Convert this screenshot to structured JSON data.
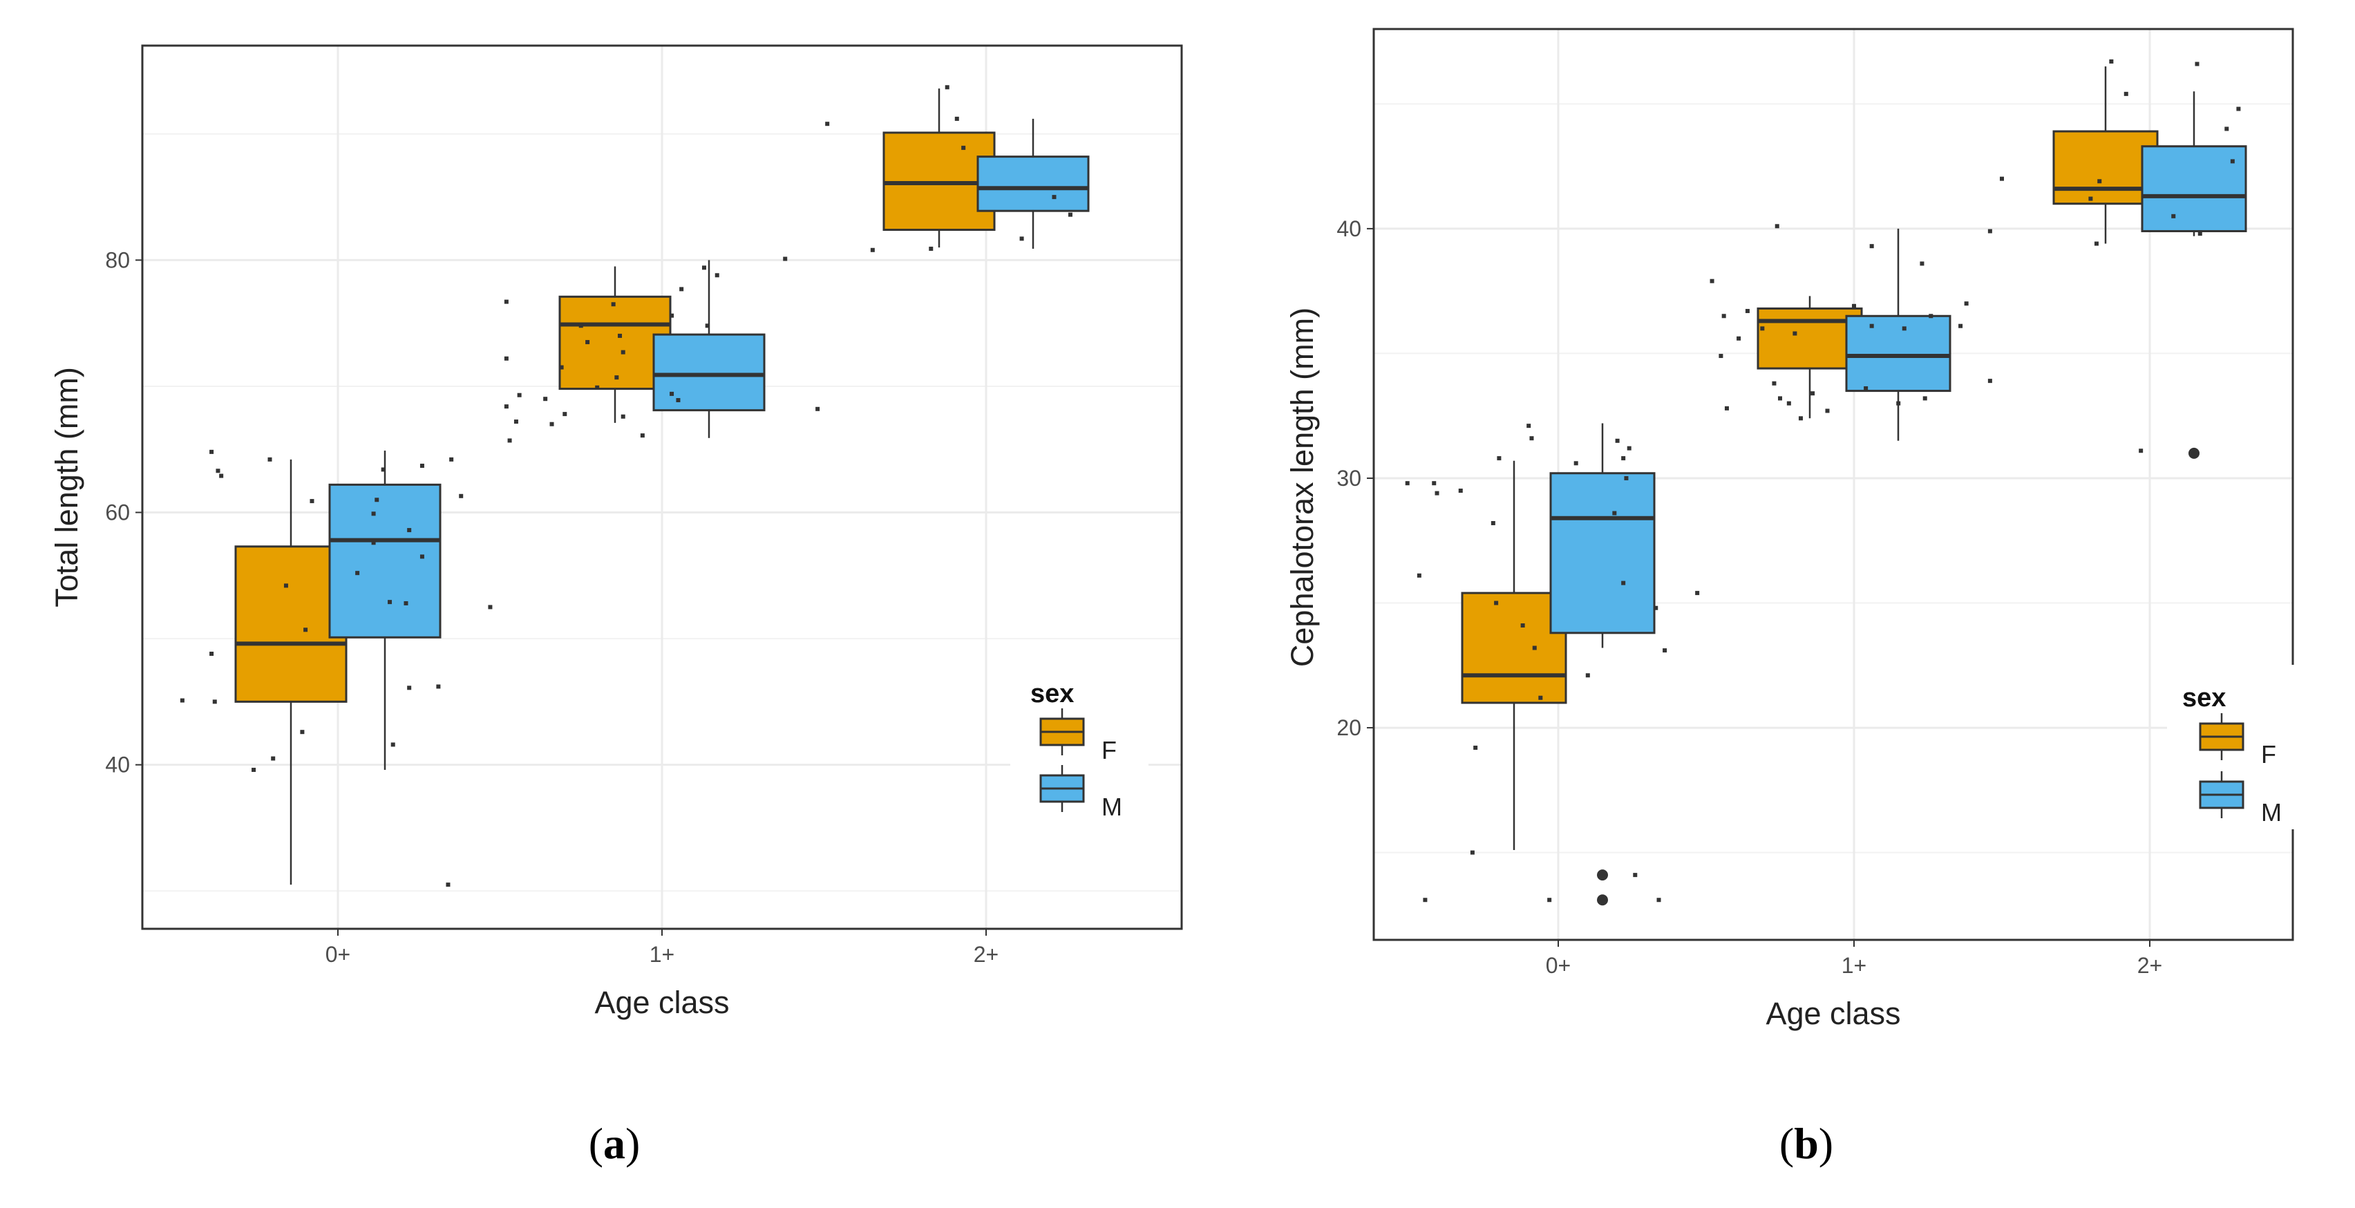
{
  "figure": {
    "panels": [
      "a",
      "b"
    ]
  },
  "colors": {
    "F": "#E69F00",
    "M": "#56B4E9",
    "grid": "#ebebeb",
    "outline": "#333333",
    "points": "#333333"
  },
  "chart_data": [
    {
      "type": "box",
      "panel": "a",
      "caption_open": "(",
      "caption_letter": "a",
      "caption_close": ")",
      "title": "",
      "xlabel": "Age class",
      "ylabel": "Total length (mm)",
      "categories": [
        "0+",
        "1+",
        "2+"
      ],
      "ylim": [
        27,
        97
      ],
      "yticks": [
        40,
        60,
        80
      ],
      "grid": true,
      "legend": {
        "title": "sex",
        "position": "right",
        "entries": [
          "F",
          "M"
        ]
      },
      "series": [
        {
          "name": "F",
          "boxes": [
            {
              "category": "0+",
              "min": 30.5,
              "q1": 45.0,
              "median": 49.6,
              "q3": 57.3,
              "max": 64.2,
              "outliers": []
            },
            {
              "category": "1+",
              "min": 67.1,
              "q1": 69.8,
              "median": 74.9,
              "q3": 77.1,
              "max": 79.5,
              "outliers": []
            },
            {
              "category": "2+",
              "min": 81.0,
              "q1": 82.4,
              "median": 86.1,
              "q3": 90.1,
              "max": 93.6,
              "outliers": []
            }
          ]
        },
        {
          "name": "M",
          "boxes": [
            {
              "category": "0+",
              "min": 39.6,
              "q1": 50.1,
              "median": 57.8,
              "q3": 62.2,
              "max": 64.9,
              "outliers": []
            },
            {
              "category": "1+",
              "min": 65.9,
              "q1": 68.1,
              "median": 70.9,
              "q3": 74.1,
              "max": 80.0,
              "outliers": []
            },
            {
              "category": "2+",
              "min": 80.9,
              "q1": 83.9,
              "median": 85.7,
              "q3": 88.2,
              "max": 91.2,
              "outliers": []
            }
          ]
        }
      ],
      "jitter": [
        {
          "x": -0.48,
          "y": 45.1
        },
        {
          "x": -0.39,
          "y": 64.8
        },
        {
          "x": -0.37,
          "y": 63.3
        },
        {
          "x": -0.36,
          "y": 62.9
        },
        {
          "x": -0.39,
          "y": 48.8
        },
        {
          "x": -0.38,
          "y": 45.0
        },
        {
          "x": -0.26,
          "y": 39.6
        },
        {
          "x": -0.2,
          "y": 40.5
        },
        {
          "x": -0.16,
          "y": 54.2
        },
        {
          "x": -0.21,
          "y": 64.2
        },
        {
          "x": -0.1,
          "y": 50.7
        },
        {
          "x": -0.11,
          "y": 42.6
        },
        {
          "x": -0.08,
          "y": 60.9
        },
        {
          "x": 0.06,
          "y": 55.2
        },
        {
          "x": 0.11,
          "y": 59.9
        },
        {
          "x": 0.12,
          "y": 61.0
        },
        {
          "x": 0.14,
          "y": 63.4
        },
        {
          "x": 0.11,
          "y": 57.6
        },
        {
          "x": 0.16,
          "y": 52.9
        },
        {
          "x": 0.17,
          "y": 41.6
        },
        {
          "x": 0.21,
          "y": 52.8
        },
        {
          "x": 0.22,
          "y": 58.6
        },
        {
          "x": 0.26,
          "y": 56.5
        },
        {
          "x": 0.26,
          "y": 63.7
        },
        {
          "x": 0.22,
          "y": 46.1
        },
        {
          "x": 0.31,
          "y": 46.2
        },
        {
          "x": 0.35,
          "y": 64.2
        },
        {
          "x": 0.38,
          "y": 61.3
        },
        {
          "x": 0.34,
          "y": 30.5
        },
        {
          "x": 0.47,
          "y": 52.5
        },
        {
          "x": 0.52,
          "y": 76.7
        },
        {
          "x": 0.52,
          "y": 72.2
        },
        {
          "x": 0.52,
          "y": 68.4
        },
        {
          "x": 0.53,
          "y": 65.7
        },
        {
          "x": 0.55,
          "y": 67.2
        },
        {
          "x": 0.56,
          "y": 69.3
        },
        {
          "x": 0.64,
          "y": 69.0
        },
        {
          "x": 0.66,
          "y": 67.0
        },
        {
          "x": 0.7,
          "y": 67.8
        },
        {
          "x": 0.69,
          "y": 71.5
        },
        {
          "x": 0.75,
          "y": 74.8
        },
        {
          "x": 0.77,
          "y": 73.5
        },
        {
          "x": 0.8,
          "y": 69.9
        },
        {
          "x": 0.85,
          "y": 76.5
        },
        {
          "x": 0.86,
          "y": 70.7
        },
        {
          "x": 0.87,
          "y": 74.0
        },
        {
          "x": 0.88,
          "y": 72.7
        },
        {
          "x": 0.88,
          "y": 67.6
        },
        {
          "x": 0.94,
          "y": 66.1
        },
        {
          "x": 1.03,
          "y": 75.6
        },
        {
          "x": 1.06,
          "y": 77.7
        },
        {
          "x": 1.03,
          "y": 69.4
        },
        {
          "x": 1.05,
          "y": 68.9
        },
        {
          "x": 1.13,
          "y": 79.4
        },
        {
          "x": 1.17,
          "y": 78.8
        },
        {
          "x": 1.14,
          "y": 74.8
        },
        {
          "x": 1.38,
          "y": 80.1
        },
        {
          "x": 1.48,
          "y": 68.2
        },
        {
          "x": 1.51,
          "y": 90.8
        },
        {
          "x": 1.65,
          "y": 80.8
        },
        {
          "x": 1.83,
          "y": 80.9
        },
        {
          "x": 1.88,
          "y": 93.7
        },
        {
          "x": 1.91,
          "y": 91.2
        },
        {
          "x": 1.93,
          "y": 88.9
        },
        {
          "x": 2.11,
          "y": 81.7
        },
        {
          "x": 2.21,
          "y": 85.0
        },
        {
          "x": 2.26,
          "y": 83.6
        }
      ]
    },
    {
      "type": "box",
      "panel": "b",
      "caption_open": "(",
      "caption_letter": "b",
      "caption_close": ")",
      "title": "",
      "xlabel": "Age class",
      "ylabel": "Cephalotorax length (mm)",
      "categories": [
        "0+",
        "1+",
        "2+"
      ],
      "ylim": [
        11.5,
        48
      ],
      "yticks": [
        20,
        30,
        40
      ],
      "grid": true,
      "legend": {
        "title": "sex",
        "position": "right",
        "entries": [
          "F",
          "M"
        ]
      },
      "series": [
        {
          "name": "F",
          "boxes": [
            {
              "category": "0+",
              "min": 15.1,
              "q1": 21.0,
              "median": 22.1,
              "q3": 25.4,
              "max": 30.7,
              "outliers": []
            },
            {
              "category": "1+",
              "min": 32.4,
              "q1": 34.4,
              "median": 36.3,
              "q3": 36.8,
              "max": 37.3,
              "outliers": []
            },
            {
              "category": "2+",
              "min": 39.4,
              "q1": 41.0,
              "median": 41.6,
              "q3": 43.9,
              "max": 46.5,
              "outliers": []
            }
          ]
        },
        {
          "name": "M",
          "boxes": [
            {
              "category": "0+",
              "min": 23.2,
              "q1": 23.8,
              "median": 28.4,
              "q3": 30.2,
              "max": 32.2,
              "outliers": [
                14.1,
                13.1
              ]
            },
            {
              "category": "1+",
              "min": 31.5,
              "q1": 33.5,
              "median": 34.9,
              "q3": 36.5,
              "max": 40.0,
              "outliers": []
            },
            {
              "category": "2+",
              "min": 39.7,
              "q1": 39.9,
              "median": 41.3,
              "q3": 43.3,
              "max": 45.5,
              "outliers": [
                31.0
              ]
            }
          ]
        }
      ],
      "jitter": [
        {
          "x": -0.51,
          "y": 29.8
        },
        {
          "x": -0.47,
          "y": 26.1
        },
        {
          "x": -0.45,
          "y": 13.1
        },
        {
          "x": -0.42,
          "y": 29.8
        },
        {
          "x": -0.41,
          "y": 29.4
        },
        {
          "x": -0.33,
          "y": 29.5
        },
        {
          "x": -0.29,
          "y": 15.0
        },
        {
          "x": -0.28,
          "y": 19.2
        },
        {
          "x": -0.22,
          "y": 28.2
        },
        {
          "x": -0.2,
          "y": 30.8
        },
        {
          "x": -0.21,
          "y": 25.0
        },
        {
          "x": -0.12,
          "y": 24.1
        },
        {
          "x": -0.1,
          "y": 32.1
        },
        {
          "x": -0.09,
          "y": 31.6
        },
        {
          "x": -0.08,
          "y": 23.2
        },
        {
          "x": -0.06,
          "y": 21.2
        },
        {
          "x": -0.03,
          "y": 13.1
        },
        {
          "x": 0.06,
          "y": 30.6
        },
        {
          "x": 0.1,
          "y": 22.1
        },
        {
          "x": 0.2,
          "y": 31.5
        },
        {
          "x": 0.19,
          "y": 28.6
        },
        {
          "x": 0.22,
          "y": 30.8
        },
        {
          "x": 0.24,
          "y": 31.2
        },
        {
          "x": 0.23,
          "y": 30.0
        },
        {
          "x": 0.22,
          "y": 25.8
        },
        {
          "x": 0.26,
          "y": 14.1
        },
        {
          "x": 0.34,
          "y": 13.1
        },
        {
          "x": 0.33,
          "y": 24.8
        },
        {
          "x": 0.36,
          "y": 23.1
        },
        {
          "x": 0.47,
          "y": 25.4
        },
        {
          "x": 0.52,
          "y": 37.9
        },
        {
          "x": 0.55,
          "y": 34.9
        },
        {
          "x": 0.56,
          "y": 36.5
        },
        {
          "x": 0.57,
          "y": 32.8
        },
        {
          "x": 0.61,
          "y": 35.6
        },
        {
          "x": 0.64,
          "y": 36.7
        },
        {
          "x": 0.69,
          "y": 36.0
        },
        {
          "x": 0.73,
          "y": 33.8
        },
        {
          "x": 0.74,
          "y": 40.1
        },
        {
          "x": 0.75,
          "y": 33.2
        },
        {
          "x": 0.78,
          "y": 33.0
        },
        {
          "x": 0.8,
          "y": 35.8
        },
        {
          "x": 0.82,
          "y": 32.4
        },
        {
          "x": 0.86,
          "y": 33.4
        },
        {
          "x": 0.91,
          "y": 32.7
        },
        {
          "x": 1.0,
          "y": 36.9
        },
        {
          "x": 1.04,
          "y": 33.6
        },
        {
          "x": 1.06,
          "y": 39.3
        },
        {
          "x": 1.06,
          "y": 36.1
        },
        {
          "x": 1.15,
          "y": 33.0
        },
        {
          "x": 1.17,
          "y": 36.0
        },
        {
          "x": 1.23,
          "y": 38.6
        },
        {
          "x": 1.24,
          "y": 33.2
        },
        {
          "x": 1.26,
          "y": 36.5
        },
        {
          "x": 1.36,
          "y": 36.1
        },
        {
          "x": 1.38,
          "y": 37.0
        },
        {
          "x": 1.46,
          "y": 39.9
        },
        {
          "x": 1.46,
          "y": 33.9
        },
        {
          "x": 1.5,
          "y": 42.0
        },
        {
          "x": 1.8,
          "y": 41.2
        },
        {
          "x": 1.82,
          "y": 39.4
        },
        {
          "x": 1.83,
          "y": 41.9
        },
        {
          "x": 1.87,
          "y": 46.7
        },
        {
          "x": 1.92,
          "y": 45.4
        },
        {
          "x": 1.97,
          "y": 31.1
        },
        {
          "x": 2.08,
          "y": 40.5
        },
        {
          "x": 2.16,
          "y": 46.6
        },
        {
          "x": 2.17,
          "y": 39.8
        },
        {
          "x": 2.26,
          "y": 44.0
        },
        {
          "x": 2.3,
          "y": 44.8
        },
        {
          "x": 2.28,
          "y": 42.7
        }
      ]
    }
  ]
}
